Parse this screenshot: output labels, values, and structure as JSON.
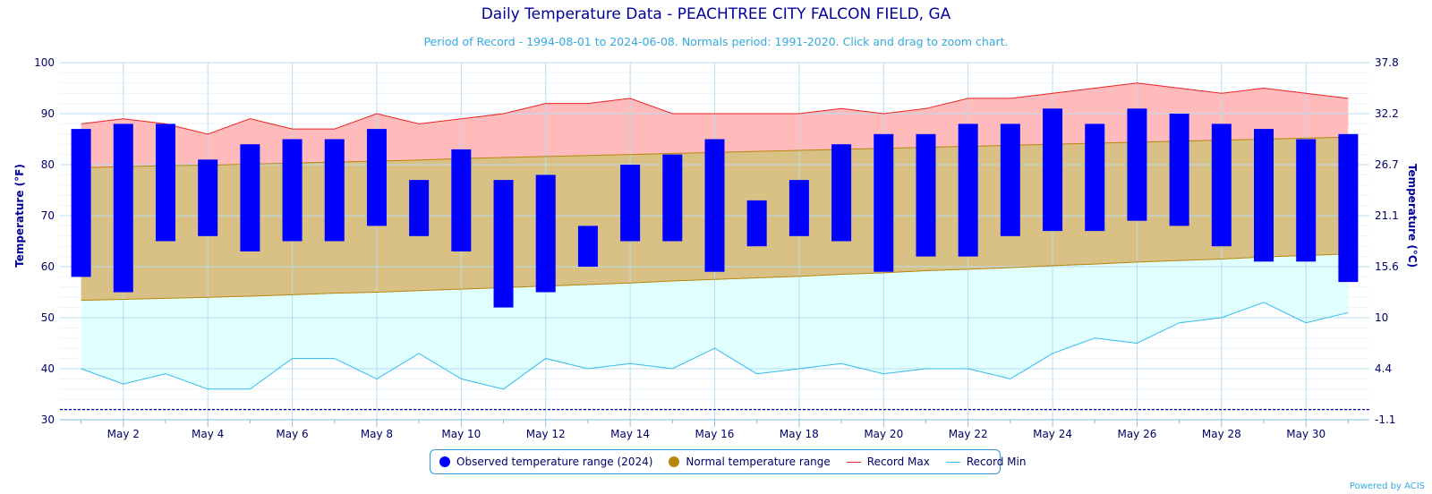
{
  "chart_data": {
    "type": "bar",
    "title": "Daily Temperature Data - PEACHTREE CITY FALCON FIELD, GA",
    "subtitle": "Period of Record - 1994-08-01 to 2024-06-08. Normals period: 1991-2020. Click and drag to zoom chart.",
    "ylabel": "Temperature (°F)",
    "y2label": "Temperature (°C)",
    "ylim": [
      30,
      100
    ],
    "yticks": [
      "30",
      "40",
      "50",
      "60",
      "70",
      "80",
      "90",
      "100"
    ],
    "y2ticks": [
      "-1.1",
      "4.4",
      "10",
      "15.6",
      "21.1",
      "26.7",
      "32.2",
      "37.8"
    ],
    "xtick_labels": [
      "May 2",
      "May 4",
      "May 6",
      "May 8",
      "May 10",
      "May 12",
      "May 14",
      "May 16",
      "May 18",
      "May 20",
      "May 22",
      "May 24",
      "May 26",
      "May 28",
      "May 30"
    ],
    "days": [
      1,
      2,
      3,
      4,
      5,
      6,
      7,
      8,
      9,
      10,
      11,
      12,
      13,
      14,
      15,
      16,
      17,
      18,
      19,
      20,
      21,
      22,
      23,
      24,
      25,
      26,
      27,
      28,
      29,
      30,
      31
    ],
    "observed_low": [
      58,
      55,
      65,
      66,
      63,
      65,
      65,
      68,
      66,
      63,
      52,
      55,
      60,
      65,
      65,
      59,
      64,
      66,
      65,
      59,
      62,
      62,
      66,
      67,
      67,
      69,
      68,
      64,
      61,
      61,
      57
    ],
    "observed_high": [
      87,
      88,
      88,
      81,
      84,
      85,
      85,
      87,
      77,
      83,
      77,
      78,
      68,
      80,
      82,
      85,
      73,
      77,
      84,
      86,
      86,
      88,
      88,
      91,
      88,
      91,
      90,
      88,
      87,
      85,
      86
    ],
    "normal_low": [
      53.4,
      53.6,
      53.8,
      54.0,
      54.2,
      54.5,
      54.8,
      55.0,
      55.3,
      55.6,
      55.9,
      56.2,
      56.5,
      56.8,
      57.2,
      57.5,
      57.8,
      58.1,
      58.5,
      58.8,
      59.2,
      59.5,
      59.8,
      60.2,
      60.5,
      60.9,
      61.2,
      61.5,
      61.9,
      62.2,
      62.5
    ],
    "normal_high": [
      79.4,
      79.6,
      79.8,
      79.9,
      80.1,
      80.3,
      80.5,
      80.7,
      80.9,
      81.2,
      81.4,
      81.6,
      81.8,
      82.0,
      82.2,
      82.4,
      82.6,
      82.8,
      83.0,
      83.2,
      83.4,
      83.6,
      83.8,
      84.0,
      84.2,
      84.4,
      84.6,
      84.8,
      85.0,
      85.2,
      85.4
    ],
    "record_max": [
      88,
      89,
      88,
      86,
      89,
      87,
      87,
      90,
      88,
      89,
      90,
      92,
      92,
      93,
      90,
      90,
      90,
      90,
      91,
      90,
      91,
      93,
      93,
      94,
      95,
      96,
      95,
      94,
      95,
      94,
      93
    ],
    "record_min": [
      40,
      37,
      39,
      36,
      36,
      42,
      42,
      38,
      43,
      38,
      36,
      42,
      40,
      41,
      40,
      44,
      39,
      40,
      41,
      39,
      40,
      40,
      38,
      43,
      46,
      45,
      49,
      50,
      53,
      49,
      51
    ],
    "reference_line": 32,
    "colors": {
      "observed": "#0000ff",
      "normal_fill": "#d9c084",
      "normal_line": "#b8860b",
      "record_max_fill": "#ffbbbb",
      "record_max_line": "#ee2222",
      "record_min_fill": "#e0ffff",
      "record_min_line": "#33bbee",
      "grid": "#b8dcf0",
      "axis_text": "#000066",
      "reference_line": "#0000aa"
    },
    "legend": [
      {
        "label": "Observed temperature range (2024)",
        "type": "dot",
        "color": "#0000ff"
      },
      {
        "label": "Normal temperature range",
        "type": "dot",
        "color": "#b8860b"
      },
      {
        "label": "Record Max",
        "type": "line",
        "color": "#ee2222"
      },
      {
        "label": "Record Min",
        "type": "line",
        "color": "#33bbee"
      }
    ],
    "legend_position": "bottom-center"
  },
  "credit": "Powered by ACIS"
}
